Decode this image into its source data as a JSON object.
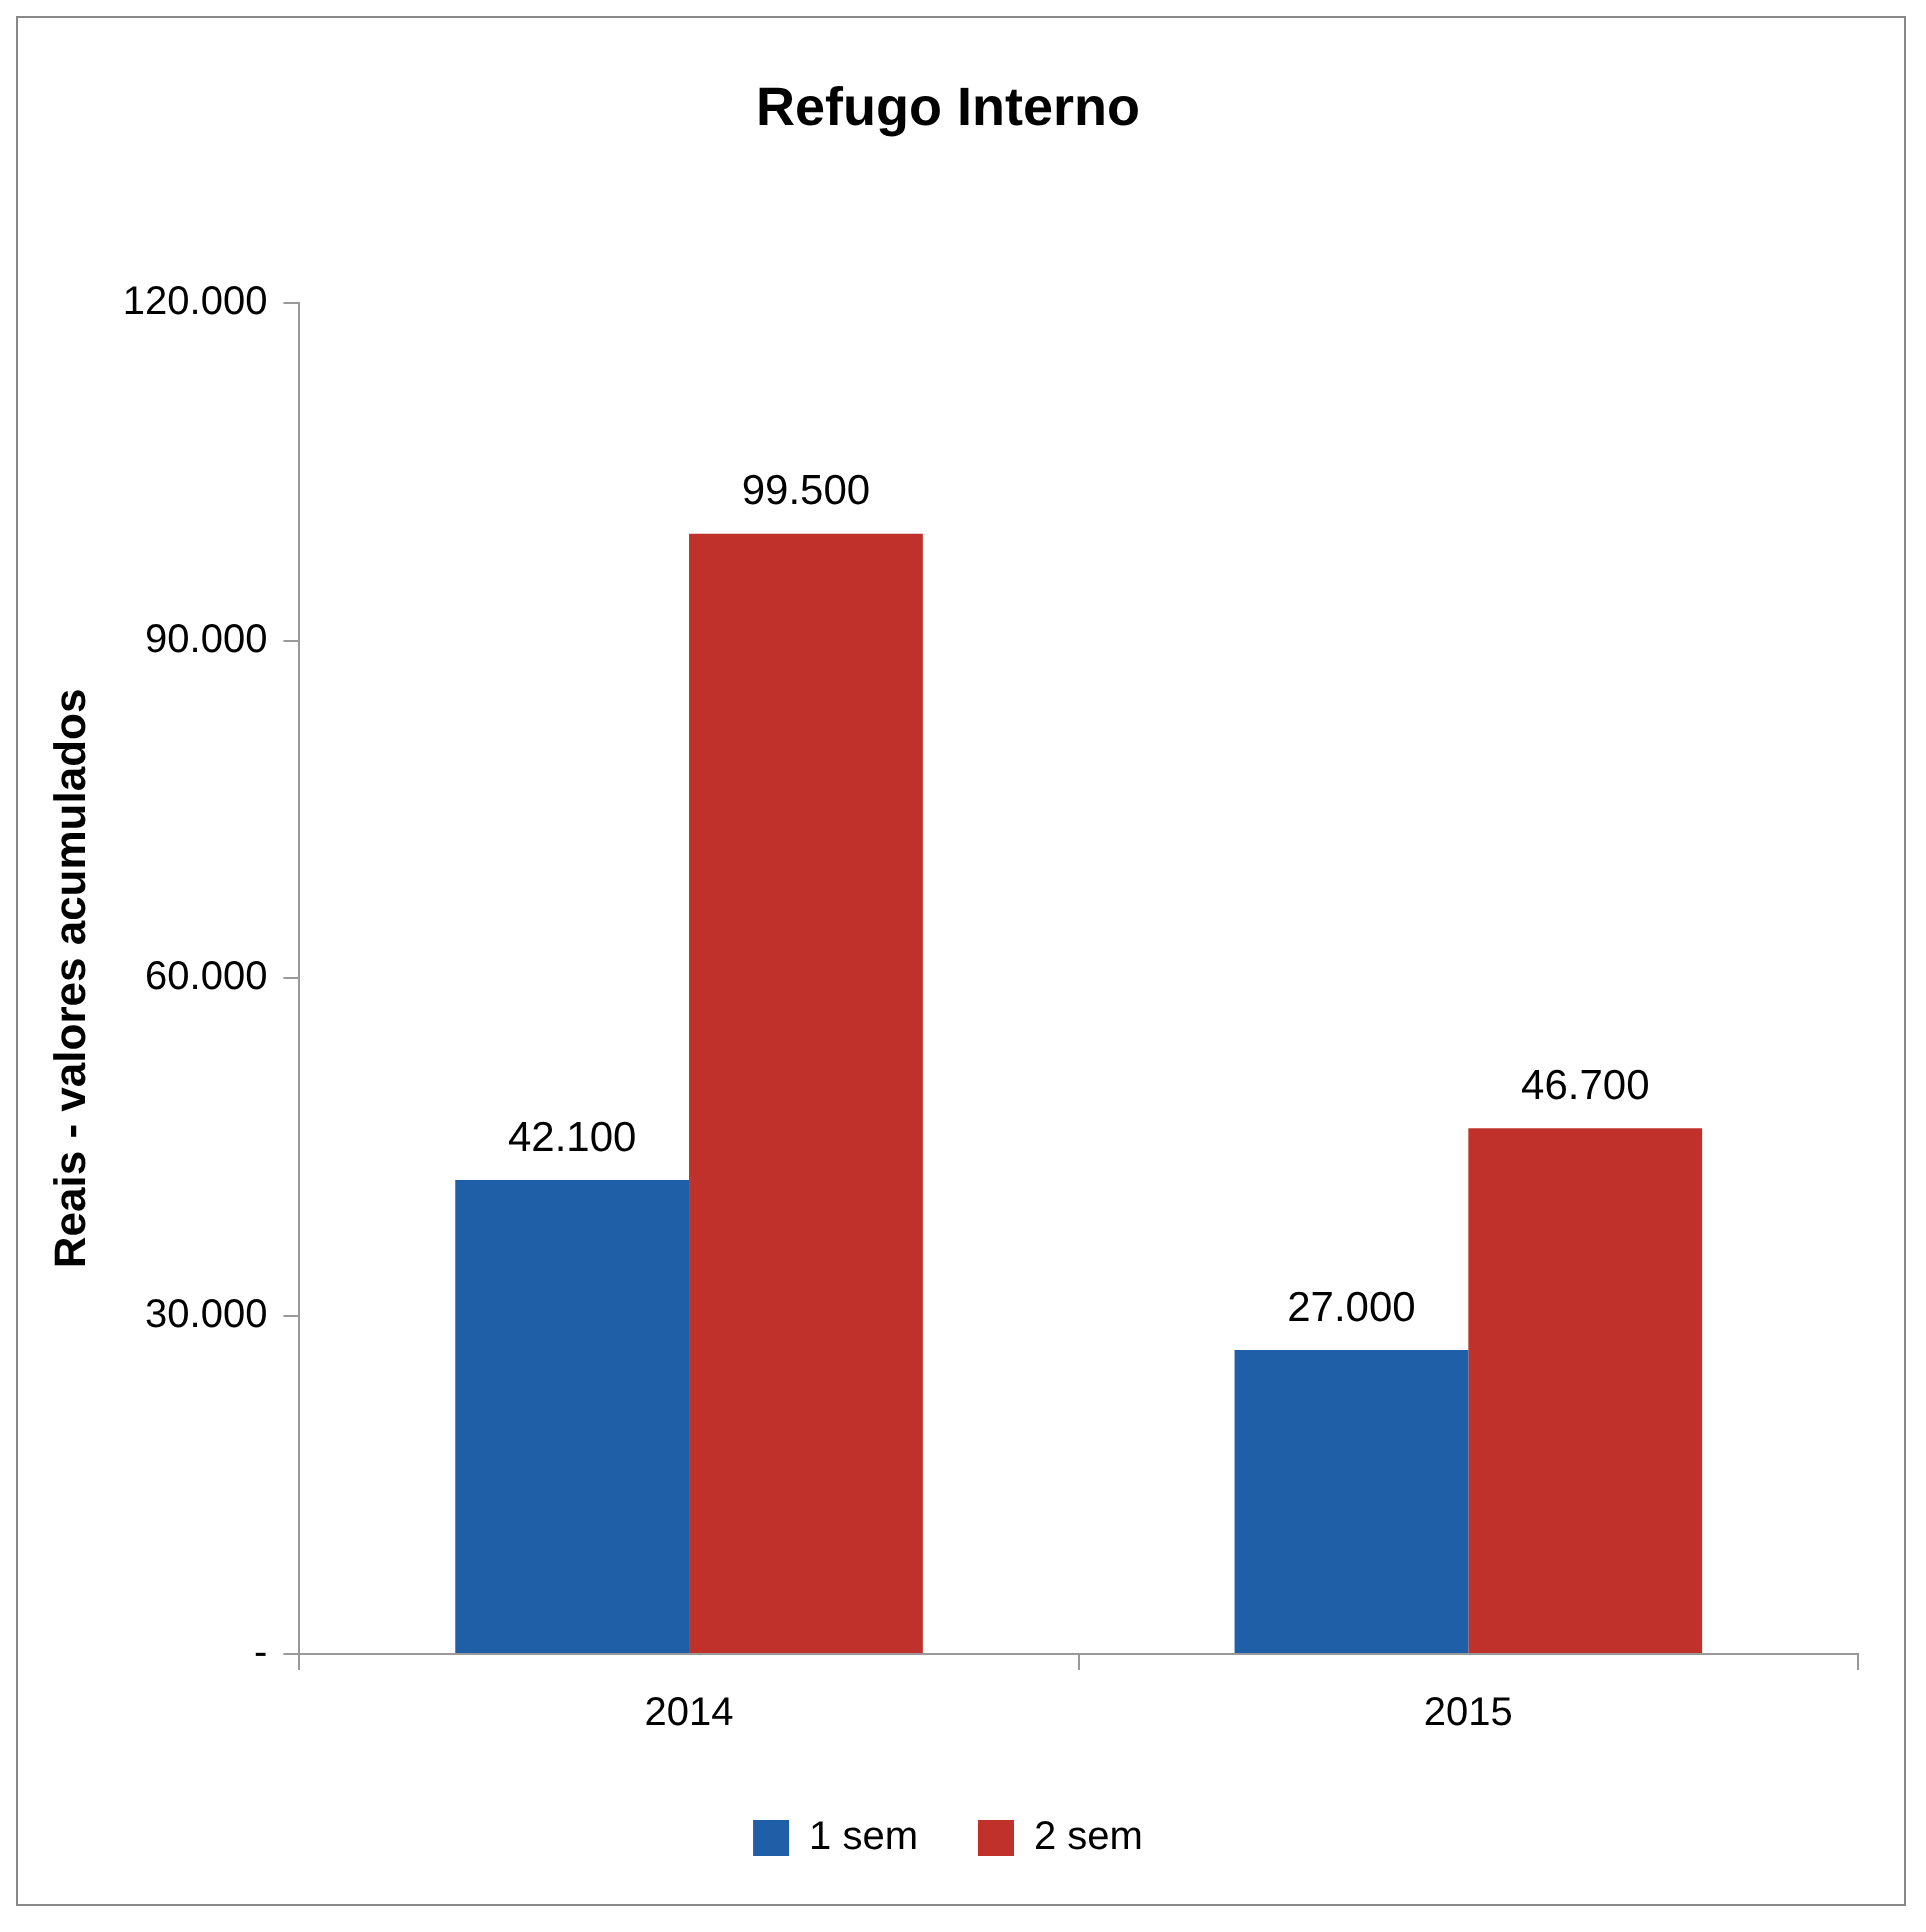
{
  "chart_data": {
    "type": "bar",
    "title": "Refugo Interno",
    "ylabel": "Reais - valores acumulados",
    "categories": [
      "2014",
      "2015"
    ],
    "series": [
      {
        "name": "1 sem",
        "color": "#1f5fa8",
        "values": [
          42100,
          27000
        ],
        "value_labels": [
          "42.100",
          "27.000"
        ]
      },
      {
        "name": "2 sem",
        "color": "#c0312b",
        "values": [
          99500,
          46700
        ],
        "value_labels": [
          "99.500",
          "46.700"
        ]
      }
    ],
    "ylim": [
      0,
      120000
    ],
    "yticks": [
      {
        "value": 0,
        "label": "-"
      },
      {
        "value": 30000,
        "label": "30.000"
      },
      {
        "value": 60000,
        "label": "60.000"
      },
      {
        "value": 90000,
        "label": "90.000"
      },
      {
        "value": 120000,
        "label": "120.000"
      }
    ],
    "grid": false,
    "legend": "bottom"
  }
}
